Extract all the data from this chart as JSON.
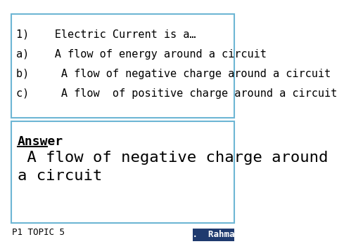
{
  "bg_color": "#ffffff",
  "border_color": "#6db6d4",
  "question_lines": [
    "1)    Electric Current is a…",
    "a)    A flow of energy around a circuit",
    "b)     A flow of negative charge around a circuit",
    "c)     A flow  of positive charge around a circuit"
  ],
  "answer_label": "Answer",
  "answer_text": " A flow of negative charge around\na circuit",
  "footer_left": "P1 TOPIC 5",
  "footer_right": "M.  Rahman",
  "footer_bg": "#1f3a6e",
  "footer_text_color": "#ffffff",
  "question_fontsize": 11,
  "answer_label_fontsize": 13,
  "answer_fontsize": 16,
  "footer_fontsize": 9,
  "font_family": "monospace"
}
